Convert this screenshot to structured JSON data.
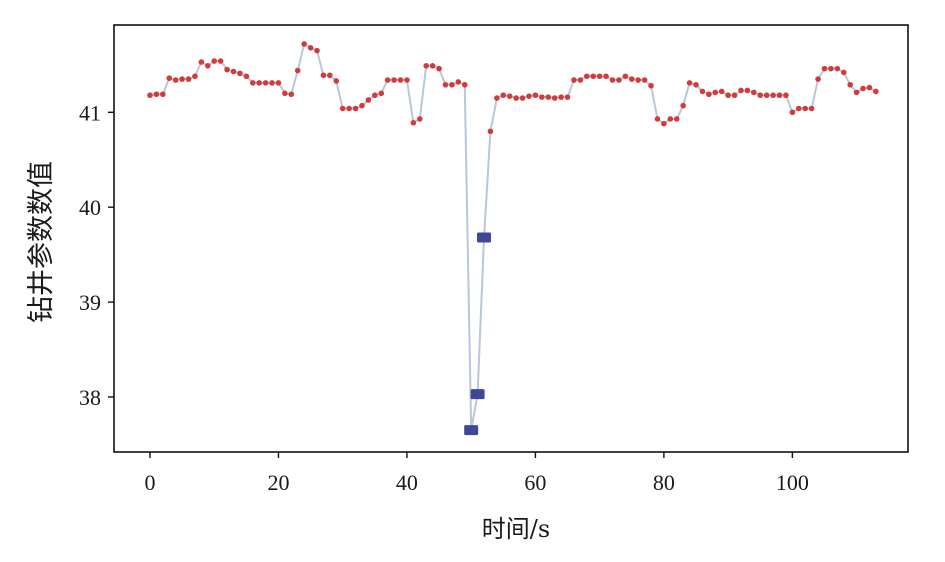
{
  "chart_data": {
    "type": "line",
    "xlabel": "时间/s",
    "ylabel": "钻井参数数值",
    "xlim": [
      -5.6,
      118
    ],
    "ylim": [
      37.42,
      41.92
    ],
    "x_ticks": [
      0,
      20,
      40,
      60,
      80,
      100
    ],
    "y_ticks": [
      38,
      39,
      40,
      41
    ],
    "grid": false,
    "x": [
      0,
      1,
      2,
      3,
      4,
      5,
      6,
      7,
      8,
      9,
      10,
      11,
      12,
      13,
      14,
      15,
      16,
      17,
      18,
      19,
      20,
      21,
      22,
      23,
      24,
      25,
      26,
      27,
      28,
      29,
      30,
      31,
      32,
      33,
      34,
      35,
      36,
      37,
      38,
      39,
      40,
      41,
      42,
      43,
      44,
      45,
      46,
      47,
      48,
      49,
      50,
      51,
      52,
      53,
      54,
      55,
      56,
      57,
      58,
      59,
      60,
      61,
      62,
      63,
      64,
      65,
      66,
      67,
      68,
      69,
      70,
      71,
      72,
      73,
      74,
      75,
      76,
      77,
      78,
      79,
      80,
      81,
      82,
      83,
      84,
      85,
      86,
      87,
      88,
      89,
      90,
      91,
      92,
      93,
      94,
      95,
      96,
      97,
      98,
      99,
      100,
      101,
      102,
      103,
      104,
      105,
      106,
      107,
      108,
      109,
      110,
      111,
      112,
      113
    ],
    "series": [
      {
        "values": [
          41.18,
          41.19,
          41.19,
          41.36,
          41.34,
          41.35,
          41.35,
          41.38,
          41.53,
          41.49,
          41.54,
          41.54,
          41.45,
          41.43,
          41.41,
          41.38,
          41.31,
          41.31,
          41.31,
          41.31,
          41.31,
          41.2,
          41.19,
          41.44,
          41.72,
          41.68,
          41.65,
          41.39,
          41.39,
          41.33,
          41.04,
          41.04,
          41.04,
          41.07,
          41.13,
          41.18,
          41.2,
          41.34,
          41.34,
          41.34,
          41.34,
          40.89,
          40.93,
          41.49,
          41.49,
          41.46,
          41.29,
          41.29,
          41.32,
          41.29,
          37.65,
          38.03,
          39.68,
          40.8,
          41.15,
          41.18,
          41.17,
          41.15,
          41.15,
          41.17,
          41.18,
          41.16,
          41.16,
          41.15,
          41.16,
          41.16,
          41.34,
          41.34,
          41.38,
          41.38,
          41.38,
          41.38,
          41.34,
          41.34,
          41.38,
          41.35,
          41.34,
          41.34,
          41.28,
          40.93,
          40.88,
          40.93,
          40.93,
          41.07,
          41.31,
          41.29,
          41.22,
          41.19,
          41.21,
          41.22,
          41.18,
          41.18,
          41.23,
          41.23,
          41.21,
          41.18,
          41.18,
          41.18,
          41.18,
          41.18,
          41.0,
          41.04,
          41.04,
          41.04,
          41.35,
          41.46,
          41.46,
          41.46,
          41.42,
          41.29,
          41.21,
          41.25,
          41.26,
          41.22
        ],
        "line_color": "#b9c7d8",
        "marker_color": "#d13b3b",
        "highlight_indices": [
          50,
          51,
          52
        ],
        "highlight_color": "#3e4897"
      }
    ]
  }
}
